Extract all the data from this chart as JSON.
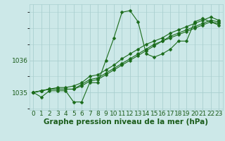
{
  "xlabel": "Graphe pression niveau de la mer (hPa)",
  "ylabel": "",
  "background_color": "#cce8e8",
  "grid_color": "#aacfcf",
  "line_color": "#1a6b1a",
  "marker_color": "#1a6b1a",
  "text_color": "#1a5c1a",
  "xlim": [
    -0.5,
    23.5
  ],
  "ylim": [
    1034.45,
    1037.75
  ],
  "xticks": [
    0,
    1,
    2,
    3,
    4,
    5,
    6,
    7,
    8,
    9,
    10,
    11,
    12,
    13,
    14,
    15,
    16,
    17,
    18,
    19,
    20,
    21,
    22,
    23
  ],
  "ytick_labels": [
    "1035",
    "1036"
  ],
  "ytick_values": [
    1035,
    1036
  ],
  "series": [
    [
      1035.0,
      1034.85,
      1035.05,
      1035.05,
      1035.05,
      1034.7,
      1034.7,
      1035.3,
      1035.3,
      1036.0,
      1036.7,
      1037.5,
      1037.55,
      1037.2,
      1036.2,
      1036.1,
      1036.2,
      1036.35,
      1036.6,
      1036.6,
      1037.2,
      1037.3,
      1037.2,
      1037.1
    ],
    [
      1035.0,
      1035.05,
      1035.1,
      1035.1,
      1035.1,
      1035.1,
      1035.2,
      1035.35,
      1035.4,
      1035.55,
      1035.7,
      1035.85,
      1036.0,
      1036.15,
      1036.3,
      1036.45,
      1036.6,
      1036.7,
      1036.8,
      1036.9,
      1037.0,
      1037.1,
      1037.2,
      1037.15
    ],
    [
      1035.0,
      1035.05,
      1035.1,
      1035.1,
      1035.1,
      1035.1,
      1035.25,
      1035.4,
      1035.45,
      1035.6,
      1035.75,
      1035.9,
      1036.05,
      1036.2,
      1036.35,
      1036.5,
      1036.6,
      1036.75,
      1036.85,
      1036.95,
      1037.05,
      1037.15,
      1037.25,
      1037.2
    ],
    [
      1035.0,
      1035.05,
      1035.1,
      1035.15,
      1035.15,
      1035.2,
      1035.3,
      1035.5,
      1035.55,
      1035.7,
      1035.85,
      1036.05,
      1036.2,
      1036.35,
      1036.5,
      1036.6,
      1036.7,
      1036.85,
      1036.95,
      1037.05,
      1037.15,
      1037.25,
      1037.35,
      1037.25
    ]
  ],
  "marker_size": 2.5,
  "line_width": 0.8,
  "font_size_ticks": 6.5,
  "font_size_xlabel": 7.5
}
